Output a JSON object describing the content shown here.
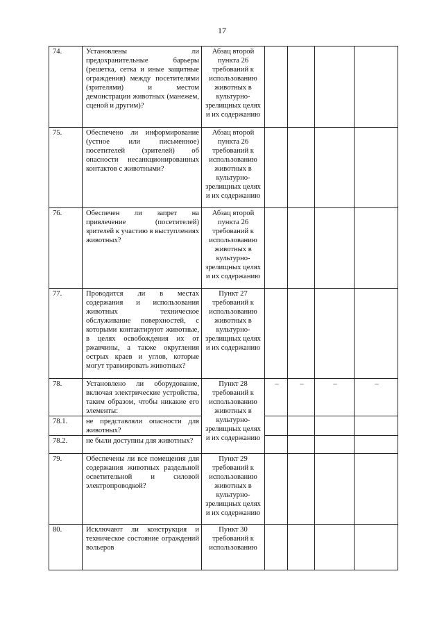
{
  "page_number": "17",
  "rows": [
    {
      "num": "74.",
      "question": "Установлены ли предохранительные барьеры (решетка, сетка и иные защитные ограждения) между посетителями (зрителями) и местом демонстрации животных (манежем, сценой и другим)?",
      "reference": "Абзац второй пункта 26 требований к использованию животных в культурно-зрелищных целях и их содержанию",
      "marks": [
        "",
        "",
        "",
        ""
      ]
    },
    {
      "num": "75.",
      "question": "Обеспечено ли информирование (устное или письменное) посетителей (зрителей) об опасности несанкционированных контактов с животными?",
      "reference": "Абзац второй пункта 26 требований к использованию животных в культурно-зрелищных целях и их содержанию",
      "marks": [
        "",
        "",
        "",
        ""
      ]
    },
    {
      "num": "76.",
      "question": "Обеспечен ли запрет на привлечение (посетителей) зрителей к участию в выступлениях животных?",
      "reference": "Абзац второй пункта 26 требований к использованию животных в культурно-зрелищных целях и их содержанию",
      "marks": [
        "",
        "",
        "",
        ""
      ]
    },
    {
      "num": "77.",
      "question": "Проводится ли в местах содержания и использования животных техническое обслуживание поверхностей, с которыми контактируют животные, в целях освобождения их от ржавчины, а также округления острых краев и углов, которые могут травмировать животных?",
      "reference": "Пункт 27 требований к использованию животных в культурно-зрелищных целях и их содержанию",
      "marks": [
        "",
        "",
        "",
        ""
      ]
    },
    {
      "num": "78.",
      "question": "Установлено ли оборудование, включая электрические устройства, таким образом, чтобы никакие его элементы:",
      "reference": "Пункт 28 требований к использованию животных в культурно-зрелищных целях и их содержанию",
      "marks": [
        "–",
        "–",
        "–",
        "–"
      ]
    },
    {
      "num": "78.1.",
      "question": "не представляли опасности для животных?",
      "marks": [
        "",
        "",
        "",
        ""
      ]
    },
    {
      "num": "78.2.",
      "question": "не были доступны для животных?",
      "marks": [
        "",
        "",
        "",
        ""
      ]
    },
    {
      "num": "79.",
      "question": "Обеспечены ли все помещения для содержания животных раздельной осветительной и силовой электропроводкой?",
      "reference": "Пункт 29 требований к использованию животных в культурно-зрелищных целях и их содержанию",
      "marks": [
        "",
        "",
        "",
        ""
      ]
    },
    {
      "num": "80.",
      "question": "Исключают ли конструкция и техническое состояние ограждений вольеров",
      "reference": "Пункт 30 требований к использованию",
      "marks": [
        "",
        "",
        "",
        ""
      ]
    }
  ]
}
